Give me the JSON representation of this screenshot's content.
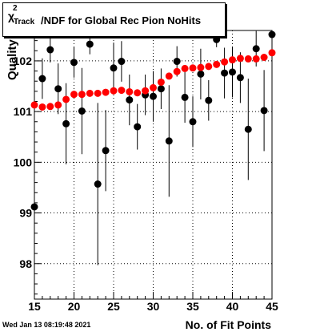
{
  "chart_data": {
    "type": "scatter",
    "title_symbol": "χ",
    "title_superscript": "2",
    "title_subscript": "Track",
    "title_rest": "/NDF for Global Rec Pion NoHits",
    "xlabel": "No. of Fit Points",
    "ylabel": "Quality",
    "xlim": [
      15,
      45
    ],
    "ylim": [
      97.3,
      102.6
    ],
    "grid": true,
    "x_ticks": [
      "15",
      "20",
      "25",
      "30",
      "35",
      "40",
      "45"
    ],
    "y_ticks": [
      "98",
      "99",
      "100",
      "101",
      "102"
    ],
    "series": [
      {
        "color": "#000000",
        "marker": "circle",
        "x": [
          15,
          16,
          17,
          18,
          19,
          20,
          21,
          22,
          23,
          24,
          25,
          26,
          27,
          28,
          29,
          30,
          31,
          32,
          33,
          34,
          35,
          36,
          37,
          38,
          39,
          40,
          41,
          42,
          43,
          44,
          45
        ],
        "y": [
          99.12,
          101.65,
          102.22,
          101.45,
          100.76,
          101.97,
          101.01,
          102.33,
          99.57,
          100.23,
          101.86,
          101.99,
          101.23,
          100.7,
          101.33,
          101.3,
          101.45,
          100.42,
          101.99,
          101.28,
          100.8,
          101.74,
          101.22,
          102.42,
          101.76,
          101.78,
          101.67,
          100.65,
          102.24,
          101.02,
          102.52
        ],
        "yerr": [
          0.15,
          0.4,
          0.25,
          0.5,
          0.8,
          0.3,
          0.85,
          0.2,
          1.6,
          0.8,
          0.5,
          0.4,
          0.5,
          0.45,
          0.4,
          0.5,
          0.4,
          1.1,
          0.3,
          0.5,
          0.5,
          0.5,
          0.4,
          0.15,
          0.5,
          0.5,
          0.5,
          1.0,
          0.35,
          0.8,
          0.2
        ]
      },
      {
        "color": "#ff0000",
        "marker": "circle",
        "x": [
          15,
          16,
          17,
          18,
          19,
          20,
          21,
          22,
          23,
          24,
          25,
          26,
          27,
          28,
          29,
          30,
          31,
          32,
          33,
          34,
          35,
          36,
          37,
          38,
          39,
          40,
          41,
          42,
          43,
          44,
          45
        ],
        "y": [
          101.13,
          101.09,
          101.1,
          101.13,
          101.24,
          101.34,
          101.34,
          101.36,
          101.36,
          101.38,
          101.41,
          101.42,
          101.39,
          101.37,
          101.41,
          101.47,
          101.58,
          101.7,
          101.79,
          101.85,
          101.86,
          101.87,
          101.89,
          101.93,
          101.98,
          102.02,
          102.05,
          102.04,
          102.04,
          102.07,
          102.16
        ],
        "yerr": []
      }
    ]
  },
  "footer": {
    "datestamp": "Wed Jan 13 08:19:48 2021"
  }
}
